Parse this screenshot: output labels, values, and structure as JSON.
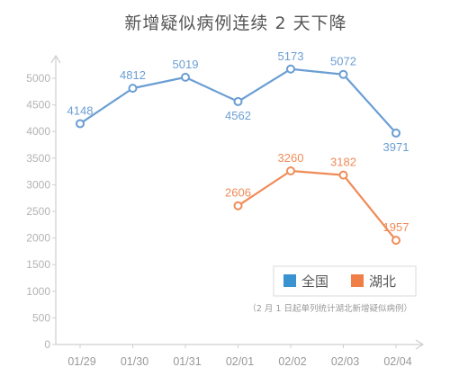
{
  "chart_data": {
    "type": "line",
    "title": "新增疑似病例连续 2 天下降",
    "categories": [
      "01/29",
      "01/30",
      "01/31",
      "02/01",
      "02/02",
      "02/03",
      "02/04"
    ],
    "ylim": [
      0,
      5000
    ],
    "yticks": [
      0,
      500,
      1000,
      1500,
      2000,
      2500,
      3000,
      3500,
      4000,
      4500,
      5000
    ],
    "series": [
      {
        "name": "全国",
        "color": "#6b9ed3",
        "values": [
          4148,
          4812,
          5019,
          4562,
          5173,
          5072,
          3971
        ]
      },
      {
        "name": "湖北",
        "color": "#f08b58",
        "values": [
          null,
          null,
          null,
          2606,
          3260,
          3182,
          1957
        ]
      }
    ],
    "legend_position": "bottom-right",
    "legend_swatches": [
      "#3a93d1",
      "#ef7f46"
    ],
    "note": "（2 月 1 日起单列统计湖北新增疑似病例）",
    "grid": false
  }
}
